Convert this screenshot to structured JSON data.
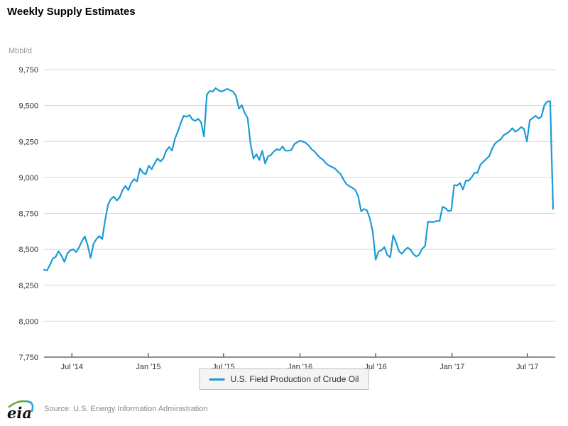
{
  "title": "Weekly Supply Estimates",
  "y_axis": {
    "unit_label": "Mbbl/d"
  },
  "legend": {
    "label": "U.S. Field Production of Crude Oil"
  },
  "footer": {
    "logo_text": "eia",
    "source": "Source: U.S. Energy Information Administration"
  },
  "colors": {
    "line": "#1c9ad6",
    "grid": "#d6d6d6",
    "axis": "#222222",
    "tick_label": "#333333",
    "unit_label": "#9a9a9a",
    "legend_bg": "#f4f4f4",
    "legend_border": "#bcbcbc",
    "logo_green": "#69a82f",
    "logo_blue": "#25a9d8"
  },
  "chart_data": {
    "type": "line",
    "title": "Weekly Supply Estimates",
    "xlabel": "",
    "ylabel": "Mbbl/d",
    "ylim": [
      7750,
      9750
    ],
    "ytick_interval": 250,
    "grid": "horizontal",
    "legend_position": "bottom-center",
    "xticks": [
      {
        "date": "2014-07-01",
        "label": "Jul '14"
      },
      {
        "date": "2015-01-01",
        "label": "Jan '15"
      },
      {
        "date": "2015-07-01",
        "label": "Jul '15"
      },
      {
        "date": "2016-01-01",
        "label": "Jan '16"
      },
      {
        "date": "2016-07-01",
        "label": "Jul '16"
      },
      {
        "date": "2017-01-01",
        "label": "Jan '17"
      },
      {
        "date": "2017-07-01",
        "label": "Jul '17"
      }
    ],
    "series": [
      {
        "name": "U.S. Field Production of Crude Oil",
        "color": "#1c9ad6",
        "cadence": "weekly",
        "start": "2014-04-25",
        "end": "2017-09-01",
        "values": [
          8358,
          8352,
          8390,
          8435,
          8448,
          8488,
          8455,
          8412,
          8470,
          8492,
          8500,
          8481,
          8512,
          8556,
          8590,
          8528,
          8440,
          8538,
          8570,
          8592,
          8571,
          8700,
          8810,
          8850,
          8866,
          8840,
          8860,
          8912,
          8940,
          8912,
          8963,
          8988,
          8972,
          9062,
          9032,
          9022,
          9082,
          9057,
          9097,
          9131,
          9111,
          9131,
          9186,
          9211,
          9186,
          9270,
          9319,
          9378,
          9428,
          9422,
          9433,
          9403,
          9393,
          9408,
          9384,
          9285,
          9577,
          9601,
          9597,
          9621,
          9606,
          9597,
          9606,
          9616,
          9606,
          9597,
          9567,
          9478,
          9502,
          9448,
          9413,
          9230,
          9131,
          9161,
          9121,
          9186,
          9097,
          9146,
          9156,
          9180,
          9196,
          9190,
          9215,
          9186,
          9186,
          9190,
          9230,
          9245,
          9255,
          9250,
          9240,
          9221,
          9196,
          9180,
          9156,
          9135,
          9121,
          9097,
          9082,
          9072,
          9062,
          9042,
          9022,
          8983,
          8953,
          8938,
          8928,
          8913,
          8869,
          8765,
          8780,
          8770,
          8716,
          8622,
          8428,
          8485,
          8494,
          8515,
          8460,
          8445,
          8597,
          8548,
          8488,
          8469,
          8493,
          8512,
          8497,
          8467,
          8450,
          8464,
          8504,
          8522,
          8692,
          8690,
          8690,
          8697,
          8697,
          8796,
          8786,
          8766,
          8770,
          8946,
          8944,
          8961,
          8915,
          8978,
          8977,
          9001,
          9032,
          9032,
          9088,
          9109,
          9128,
          9147,
          9199,
          9235,
          9252,
          9265,
          9293,
          9305,
          9320,
          9342,
          9318,
          9330,
          9350,
          9338,
          9250,
          9397,
          9413,
          9429,
          9410,
          9423,
          9502,
          9528,
          9530,
          8781
        ]
      }
    ]
  }
}
